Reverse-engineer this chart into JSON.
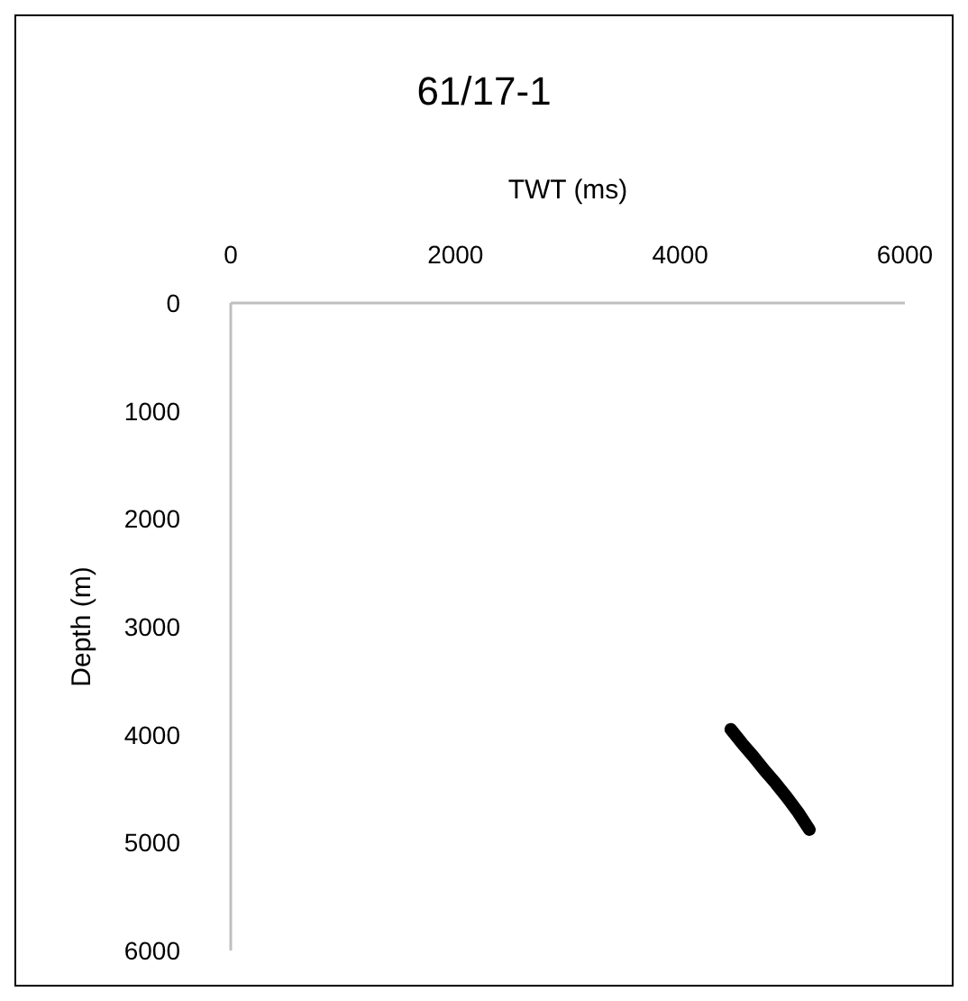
{
  "chart_data": {
    "type": "line",
    "title": "61/17-1",
    "xlabel": "TWT (ms)",
    "ylabel": "Depth (m)",
    "x": [
      4450,
      4550,
      4650,
      4750,
      4850,
      4950,
      5050,
      5150
    ],
    "series": [
      {
        "color": "#000000",
        "values": [
          3950,
          4080,
          4200,
          4330,
          4450,
          4580,
          4720,
          4880
        ]
      }
    ],
    "xlim": [
      0,
      6000
    ],
    "xticks": [
      0,
      2000,
      4000,
      6000
    ],
    "ylim": [
      6000,
      0
    ],
    "yticks": [
      0,
      1000,
      2000,
      3000,
      4000,
      5000,
      6000
    ],
    "grid": false,
    "line_style": "solid"
  }
}
